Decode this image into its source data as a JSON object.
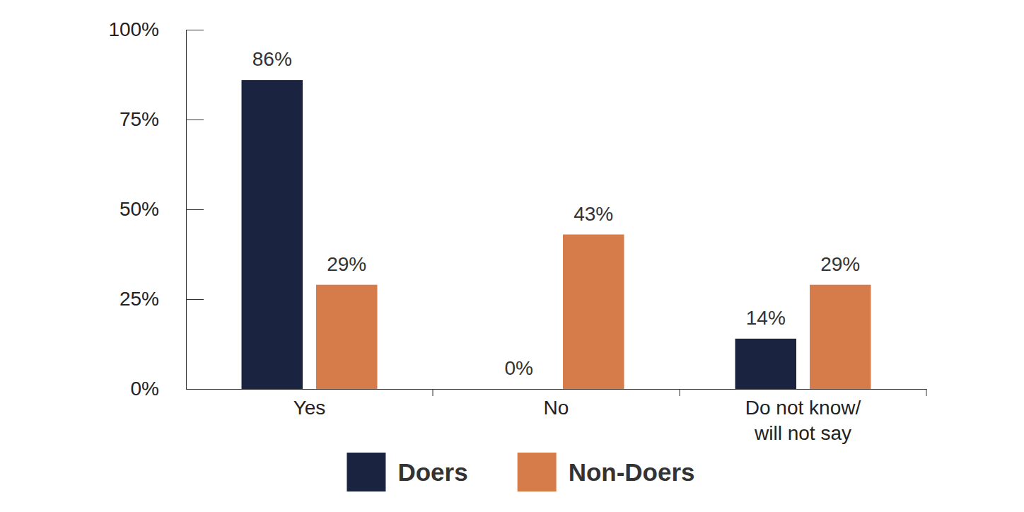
{
  "chart_data": {
    "type": "bar",
    "categories": [
      "Yes",
      "No",
      "Do not know/\nwill not say"
    ],
    "series": [
      {
        "name": "Doers",
        "color": "#1a2440",
        "values": [
          86,
          0,
          14
        ],
        "value_labels": [
          "86%",
          "0%",
          "14%"
        ]
      },
      {
        "name": "Non-Doers",
        "color": "#d67b4a",
        "values": [
          29,
          43,
          29
        ],
        "value_labels": [
          "29%",
          "43%",
          "29%"
        ]
      }
    ],
    "ylim": [
      0,
      100
    ],
    "yticks": [
      {
        "value": 0,
        "label": "0%"
      },
      {
        "value": 25,
        "label": "25%"
      },
      {
        "value": 50,
        "label": "50%"
      },
      {
        "value": 75,
        "label": "75%"
      },
      {
        "value": 100,
        "label": "100%"
      }
    ],
    "grid": false,
    "data_labels": true,
    "legend": "bottom"
  }
}
